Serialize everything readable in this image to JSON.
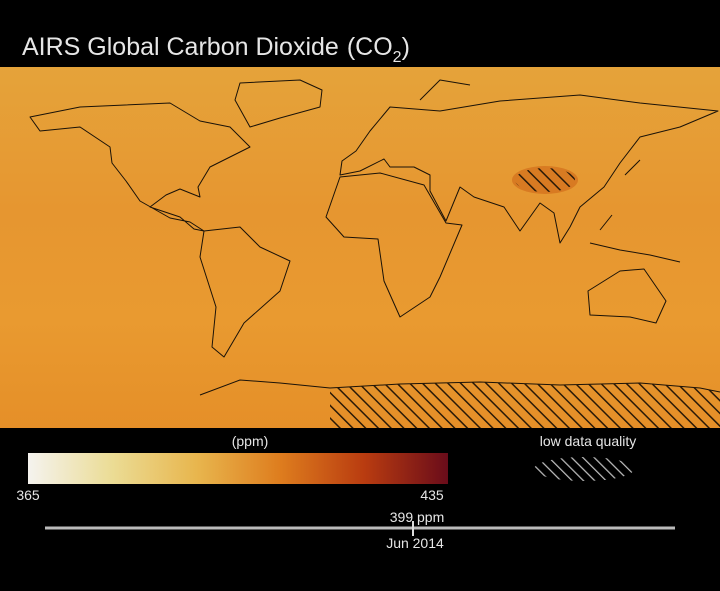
{
  "title": {
    "text": "AIRS Global Carbon Dioxide",
    "formula": "(CO",
    "subscript": "2",
    "close": ")"
  },
  "colorbar": {
    "unit": "(ppm)",
    "min": 365,
    "max": 435,
    "colors": [
      "#f5f3ef",
      "#ebdc95",
      "#e8b64e",
      "#de7d1e",
      "#b93c10",
      "#6a0c1a"
    ]
  },
  "legend": {
    "label": "low data quality"
  },
  "timeline": {
    "value_label": "399 ppm",
    "date": "Jun 2014"
  }
}
